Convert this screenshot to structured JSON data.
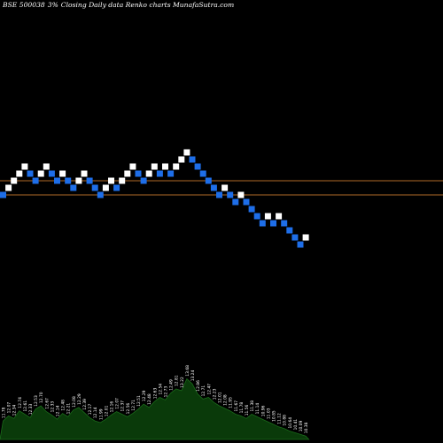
{
  "header": {
    "symbol": "BSE 500038",
    "pct": "3%",
    "description": "Closing Daily data Renko charts MunafaSutra.com"
  },
  "colors": {
    "background": "#000000",
    "up_brick": "#ffffff",
    "down_brick": "#1e6ee8",
    "level_line": "#b06a28",
    "volume_fill": "#0a3a0a",
    "volume_stroke": "#1a6a1a",
    "label": "#ffffff"
  },
  "chart_data": {
    "type": "renko",
    "levels": [
      12.18,
      11.7
    ],
    "bricks": [
      {
        "price": 11.7,
        "dir": "down",
        "label": "11.78"
      },
      {
        "price": 11.94,
        "dir": "up",
        "label": "12.07"
      },
      {
        "price": 12.18,
        "dir": "up",
        "label": "12.34"
      },
      {
        "price": 12.42,
        "dir": "up",
        "label": "12.74"
      },
      {
        "price": 12.66,
        "dir": "up",
        "label": "12.61"
      },
      {
        "price": 12.42,
        "dir": "down",
        "label": "12.33"
      },
      {
        "price": 12.18,
        "dir": "down",
        "label": "12.53"
      },
      {
        "price": 12.42,
        "dir": "up",
        "label": "12.70"
      },
      {
        "price": 12.66,
        "dir": "up",
        "label": "12.67"
      },
      {
        "price": 12.42,
        "dir": "down",
        "label": "12.33"
      },
      {
        "price": 12.18,
        "dir": "down",
        "label": "12.14"
      },
      {
        "price": 12.42,
        "dir": "up",
        "label": "12.48"
      },
      {
        "price": 12.18,
        "dir": "down",
        "label": "12.21"
      },
      {
        "price": 11.94,
        "dir": "down",
        "label": "12.08"
      },
      {
        "price": 12.18,
        "dir": "up",
        "label": "12.29"
      },
      {
        "price": 12.42,
        "dir": "up",
        "label": "12.39"
      },
      {
        "price": 12.18,
        "dir": "down",
        "label": "12.17"
      },
      {
        "price": 11.94,
        "dir": "down",
        "label": "12.14"
      },
      {
        "price": 11.7,
        "dir": "down",
        "label": "11.99"
      },
      {
        "price": 11.94,
        "dir": "up",
        "label": "12.01"
      },
      {
        "price": 12.18,
        "dir": "up",
        "label": "12.16"
      },
      {
        "price": 11.94,
        "dir": "down",
        "label": "12.07"
      },
      {
        "price": 12.18,
        "dir": "up",
        "label": "12.37"
      },
      {
        "price": 12.42,
        "dir": "up",
        "label": "12.56"
      },
      {
        "price": 12.66,
        "dir": "up",
        "label": "12.71"
      },
      {
        "price": 12.42,
        "dir": "down",
        "label": "12.51"
      },
      {
        "price": 12.18,
        "dir": "down",
        "label": "12.29"
      },
      {
        "price": 12.42,
        "dir": "up",
        "label": "12.48"
      },
      {
        "price": 12.66,
        "dir": "up",
        "label": "12.63"
      },
      {
        "price": 12.42,
        "dir": "down",
        "label": "12.54"
      },
      {
        "price": 12.66,
        "dir": "up",
        "label": "12.73"
      },
      {
        "price": 12.42,
        "dir": "down",
        "label": "12.49"
      },
      {
        "price": 12.66,
        "dir": "up",
        "label": "12.81"
      },
      {
        "price": 12.9,
        "dir": "up",
        "label": "13.22"
      },
      {
        "price": 13.14,
        "dir": "up",
        "label": "13.68"
      },
      {
        "price": 12.9,
        "dir": "down",
        "label": "13.24"
      },
      {
        "price": 12.66,
        "dir": "down",
        "label": "12.86"
      },
      {
        "price": 12.42,
        "dir": "down",
        "label": "12.71"
      },
      {
        "price": 12.18,
        "dir": "down",
        "label": "12.47"
      },
      {
        "price": 11.94,
        "dir": "down",
        "label": "12.23"
      },
      {
        "price": 11.7,
        "dir": "down",
        "label": "12.01"
      },
      {
        "price": 11.94,
        "dir": "up",
        "label": "12.08"
      },
      {
        "price": 11.7,
        "dir": "down",
        "label": "11.95"
      },
      {
        "price": 11.46,
        "dir": "down",
        "label": "11.67"
      },
      {
        "price": 11.7,
        "dir": "up",
        "label": "11.78"
      },
      {
        "price": 11.46,
        "dir": "down",
        "label": "11.56"
      },
      {
        "price": 11.22,
        "dir": "down",
        "label": "11.38"
      },
      {
        "price": 10.98,
        "dir": "down",
        "label": "11.14"
      },
      {
        "price": 10.74,
        "dir": "down",
        "label": "10.96"
      },
      {
        "price": 10.98,
        "dir": "up",
        "label": "11.03"
      },
      {
        "price": 10.74,
        "dir": "down",
        "label": "10.85"
      },
      {
        "price": 10.98,
        "dir": "up",
        "label": "11.12"
      },
      {
        "price": 10.74,
        "dir": "down",
        "label": "10.88"
      },
      {
        "price": 10.5,
        "dir": "down",
        "label": "10.64"
      },
      {
        "price": 10.26,
        "dir": "down",
        "label": "10.41"
      },
      {
        "price": 10.02,
        "dir": "down",
        "label": "10.09"
      },
      {
        "price": 10.26,
        "dir": "up",
        "label": "10.38"
      }
    ],
    "volume": [
      22,
      28,
      25,
      34,
      30,
      26,
      36,
      40,
      33,
      29,
      24,
      31,
      27,
      35,
      38,
      32,
      26,
      22,
      20,
      24,
      29,
      33,
      30,
      27,
      31,
      36,
      42,
      38,
      45,
      50,
      47,
      55,
      60,
      58,
      72,
      66,
      54,
      48,
      50,
      44,
      40,
      37,
      34,
      30,
      28,
      25,
      30,
      27,
      24,
      21,
      18,
      15,
      13,
      10,
      8,
      6,
      4
    ]
  }
}
